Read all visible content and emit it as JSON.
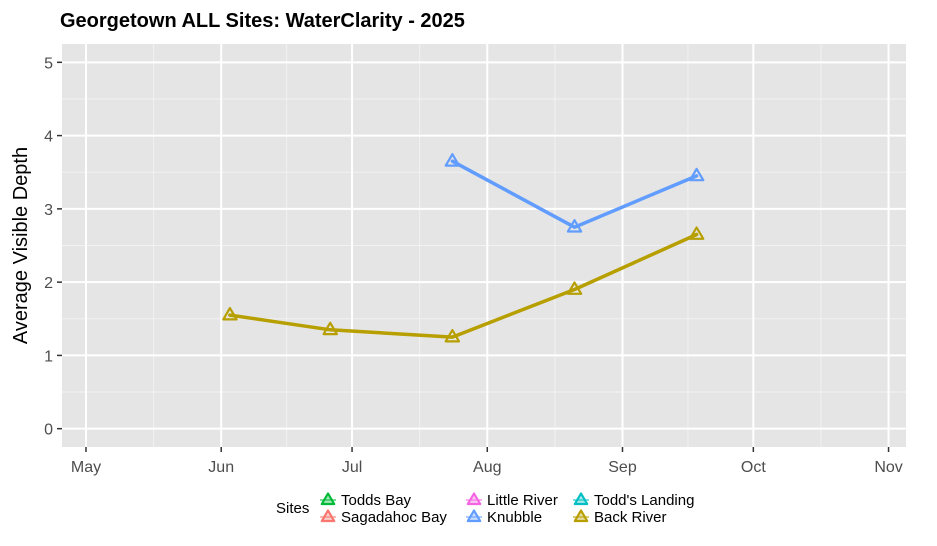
{
  "chart_data": {
    "type": "line",
    "title": "Georgetown ALL Sites: WaterClarity - 2025",
    "xlabel": "",
    "ylabel": "Average Visible Depth",
    "x_ticks": [
      "May",
      "Jun",
      "Jul",
      "Aug",
      "Sep",
      "Oct",
      "Nov"
    ],
    "y_ticks": [
      "0",
      "1",
      "2",
      "3",
      "4",
      "5"
    ],
    "ylim": [
      -0.25,
      5.25
    ],
    "xlim_days": [
      -5.5,
      188
    ],
    "grid": true,
    "legend": {
      "title": "Sites",
      "placement": "bottom",
      "entries": [
        "Todds Bay",
        "Sagadahoc Bay",
        "Little River",
        "Knubble",
        "Todd's Landing",
        "Back River"
      ]
    },
    "series": [
      {
        "name": "Todds Bay",
        "color": "#00ba38",
        "points": []
      },
      {
        "name": "Sagadahoc Bay",
        "color": "#f8766d",
        "points": []
      },
      {
        "name": "Little River",
        "color": "#f564e3",
        "points": []
      },
      {
        "name": "Knubble",
        "color": "#619cff",
        "points": [
          {
            "x": "Jul 24",
            "day": 84,
            "y": 3.65
          },
          {
            "x": "Aug 21",
            "day": 112,
            "y": 2.75
          },
          {
            "x": "Sep 18",
            "day": 140,
            "y": 3.45
          }
        ]
      },
      {
        "name": "Todd's Landing",
        "color": "#00bfc4",
        "points": []
      },
      {
        "name": "Back River",
        "color": "#b79f00",
        "points": [
          {
            "x": "Jun 3",
            "day": 33,
            "y": 1.55
          },
          {
            "x": "Jun 26",
            "day": 56,
            "y": 1.35
          },
          {
            "x": "Jul 24",
            "day": 84,
            "y": 1.25
          },
          {
            "x": "Aug 21",
            "day": 112,
            "y": 1.9
          },
          {
            "x": "Sep 18",
            "day": 140,
            "y": 2.65
          }
        ]
      }
    ]
  }
}
